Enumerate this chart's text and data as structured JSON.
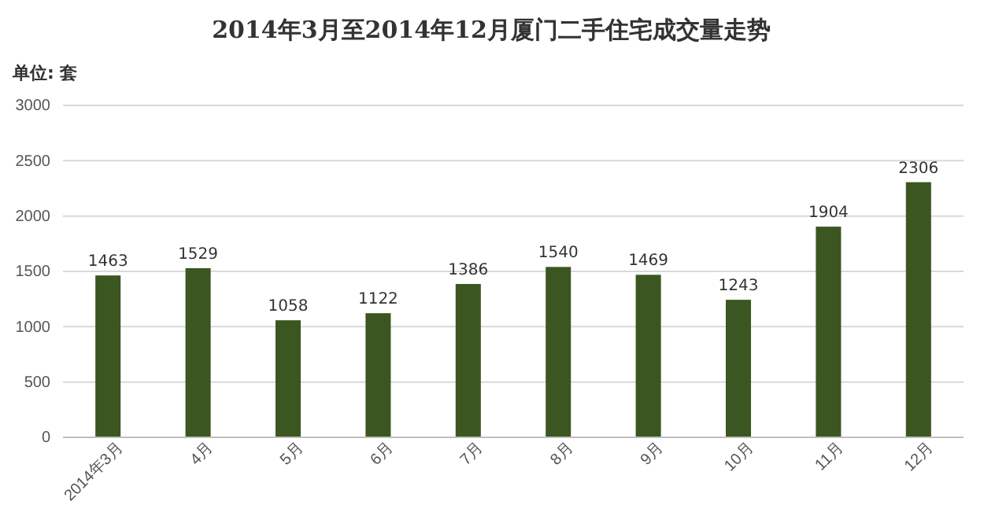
{
  "chart_data": {
    "type": "bar",
    "title": "2014年3月至2014年12月厦门二手住宅成交量走势",
    "annotations": [
      "单位: 套"
    ],
    "categories": [
      "2014年3月",
      "4月",
      "5月",
      "6月",
      "7月",
      "8月",
      "9月",
      "10月",
      "11月",
      "12月"
    ],
    "values": [
      1463,
      1529,
      1058,
      1122,
      1386,
      1540,
      1469,
      1243,
      1904,
      2306
    ],
    "color": "#3b5620",
    "ylim": [
      0,
      3000
    ],
    "yticks": [
      0,
      500,
      1000,
      1500,
      2000,
      2500,
      3000
    ],
    "grid": "y",
    "data_labels": true
  }
}
